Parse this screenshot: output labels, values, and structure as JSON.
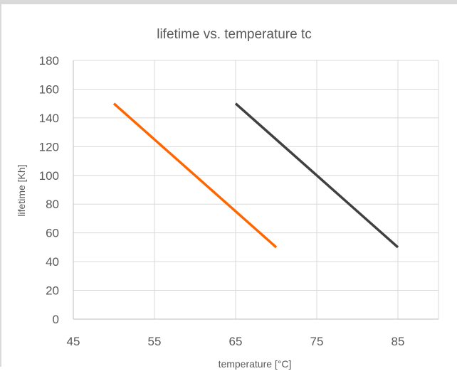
{
  "chart_data": {
    "type": "line",
    "title": "lifetime vs. temperature tc",
    "xlabel": "temperature [°C]",
    "ylabel": "lifetime [Kh]",
    "xlim": [
      45,
      90
    ],
    "ylim": [
      0,
      180
    ],
    "x_ticks": [
      45,
      55,
      65,
      75,
      85
    ],
    "y_ticks": [
      0,
      20,
      40,
      60,
      80,
      100,
      120,
      140,
      160,
      180
    ],
    "vertical_grid_at": [
      55,
      65,
      75,
      85,
      90
    ],
    "grid": true,
    "legend": "none",
    "series": [
      {
        "color": "#ff6600",
        "x": [
          50,
          70
        ],
        "y": [
          150,
          50
        ]
      },
      {
        "color": "#404040",
        "x": [
          65,
          85
        ],
        "y": [
          150,
          50
        ]
      }
    ]
  }
}
